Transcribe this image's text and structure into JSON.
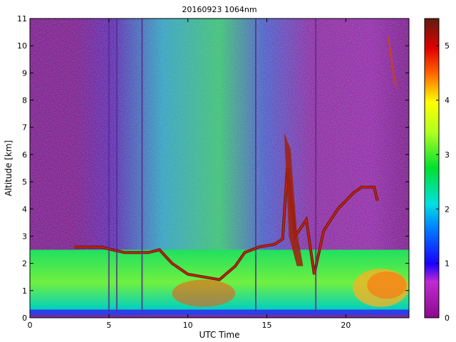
{
  "chart_data": {
    "type": "heatmap",
    "title": "20160923 1064nm",
    "xlabel": "UTC Time",
    "ylabel": "Altitude [km]",
    "xlim": [
      0,
      24
    ],
    "ylim": [
      0,
      11
    ],
    "xticks": [
      0,
      5,
      10,
      15,
      20
    ],
    "yticks": [
      0,
      1,
      2,
      3,
      4,
      5,
      6,
      7,
      8,
      9,
      10,
      11
    ],
    "colorbar": {
      "range": [
        0,
        5.5
      ],
      "ticks": [
        0,
        1,
        2,
        3,
        4,
        5
      ],
      "colormap": "jet-like (purple-blue-cyan-green-yellow-red-brown)"
    },
    "grid": false
  }
}
